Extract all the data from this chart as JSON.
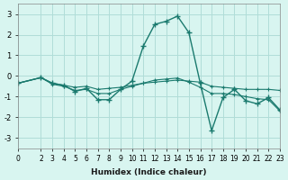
{
  "xlabel": "Humidex (Indice chaleur)",
  "ylabel": "",
  "bg_color": "#d8f5f0",
  "grid_color": "#b0ddd8",
  "line_color": "#1a7a6e",
  "xlim": [
    0,
    23
  ],
  "ylim": [
    -3.5,
    3.5
  ],
  "xtick_labels": [
    "0",
    "2",
    "3",
    "4",
    "5",
    "6",
    "7",
    "8",
    "9",
    "10",
    "11",
    "12",
    "13",
    "14",
    "15",
    "16",
    "17",
    "18",
    "19",
    "20",
    "21",
    "22",
    "23"
  ],
  "xtick_vals": [
    0,
    2,
    3,
    4,
    5,
    6,
    7,
    8,
    9,
    10,
    11,
    12,
    13,
    14,
    15,
    16,
    17,
    18,
    19,
    20,
    21,
    22,
    23
  ],
  "yticks": [
    -3,
    -2,
    -1,
    0,
    1,
    2,
    3
  ],
  "series1": [
    [
      0,
      -0.35
    ],
    [
      2,
      -0.08
    ],
    [
      3,
      -0.35
    ],
    [
      4,
      -0.45
    ],
    [
      5,
      -0.75
    ],
    [
      6,
      -0.6
    ],
    [
      7,
      -1.15
    ],
    [
      8,
      -1.15
    ],
    [
      9,
      -0.65
    ],
    [
      10,
      -0.25
    ],
    [
      11,
      1.45
    ],
    [
      12,
      2.5
    ],
    [
      13,
      2.65
    ],
    [
      14,
      2.9
    ],
    [
      15,
      2.1
    ],
    [
      16,
      -0.35
    ],
    [
      17,
      -2.65
    ],
    [
      18,
      -1.05
    ],
    [
      19,
      -0.65
    ],
    [
      20,
      -1.2
    ],
    [
      21,
      -1.35
    ],
    [
      22,
      -1.05
    ],
    [
      23,
      -1.65
    ]
  ],
  "series2": [
    [
      0,
      -0.35
    ],
    [
      2,
      -0.08
    ],
    [
      3,
      -0.35
    ],
    [
      4,
      -0.45
    ],
    [
      5,
      -0.55
    ],
    [
      6,
      -0.5
    ],
    [
      7,
      -0.65
    ],
    [
      8,
      -0.6
    ],
    [
      9,
      -0.55
    ],
    [
      10,
      -0.45
    ],
    [
      11,
      -0.35
    ],
    [
      12,
      -0.3
    ],
    [
      13,
      -0.25
    ],
    [
      14,
      -0.2
    ],
    [
      15,
      -0.25
    ],
    [
      16,
      -0.3
    ],
    [
      17,
      -0.5
    ],
    [
      18,
      -0.55
    ],
    [
      19,
      -0.6
    ],
    [
      20,
      -0.65
    ],
    [
      21,
      -0.65
    ],
    [
      22,
      -0.65
    ],
    [
      23,
      -0.7
    ]
  ],
  "series3": [
    [
      0,
      -0.35
    ],
    [
      2,
      -0.08
    ],
    [
      3,
      -0.4
    ],
    [
      4,
      -0.5
    ],
    [
      5,
      -0.7
    ],
    [
      6,
      -0.65
    ],
    [
      7,
      -0.85
    ],
    [
      8,
      -0.85
    ],
    [
      9,
      -0.65
    ],
    [
      10,
      -0.5
    ],
    [
      11,
      -0.35
    ],
    [
      12,
      -0.2
    ],
    [
      13,
      -0.15
    ],
    [
      14,
      -0.1
    ],
    [
      15,
      -0.3
    ],
    [
      16,
      -0.55
    ],
    [
      17,
      -0.85
    ],
    [
      18,
      -0.85
    ],
    [
      19,
      -0.9
    ],
    [
      20,
      -1.0
    ],
    [
      21,
      -1.1
    ],
    [
      22,
      -1.15
    ],
    [
      23,
      -1.7
    ]
  ]
}
